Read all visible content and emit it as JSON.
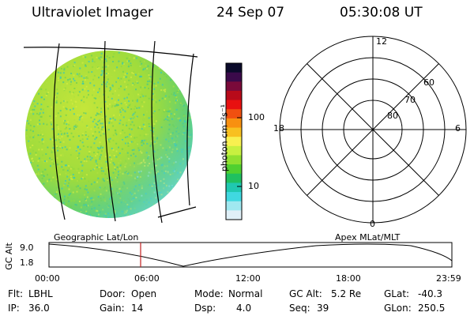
{
  "header": {
    "title": "Ultraviolet Imager",
    "date": "24 Sep 07",
    "time": "05:30:08 UT"
  },
  "colorbar": {
    "unit_label": "photon cm⁻²s⁻¹",
    "ticks": [
      "100",
      "10"
    ],
    "colors": [
      "#0a0a2a",
      "#3a0a4a",
      "#7a0a3a",
      "#b80a1a",
      "#e81010",
      "#f05010",
      "#f89010",
      "#f8c020",
      "#f8f050",
      "#c8f040",
      "#90e030",
      "#50d030",
      "#20c060",
      "#20c8b0",
      "#40d8e0",
      "#a0e8f0",
      "#e0f0f8"
    ]
  },
  "left_panel": {
    "caption": "Geographic Lat/Lon"
  },
  "right_panel": {
    "caption": "Apex MLat/MLT",
    "mlt_labels": {
      "top": "12",
      "bottom": "0",
      "left": "18",
      "right": "6"
    },
    "lat_labels": [
      "60",
      "70",
      "80"
    ]
  },
  "altitude_plot": {
    "axis_label": "GC Alt",
    "y_ticks": [
      "9.0",
      "1.8"
    ],
    "x_ticks": [
      "00:00",
      "06:00",
      "12:00",
      "18:00",
      "23:59"
    ],
    "current_time_marker_color": "#c02020"
  },
  "info": {
    "flt_label": "Flt:",
    "flt_value": "LBHL",
    "door_label": "Door:",
    "door_value": "Open",
    "mode_label": "Mode:",
    "mode_value": "Normal",
    "gcalt_label": "GC Alt:",
    "gcalt_value": "5.2 Re",
    "glat_label": "GLat:",
    "glat_value": "-40.3",
    "ip_label": "IP:",
    "ip_value": "36.0",
    "gain_label": "Gain:",
    "gain_value": "14",
    "dsp_label": "Dsp:",
    "dsp_value": "4.0",
    "seq_label": "Seq:",
    "seq_value": "39",
    "glon_label": "GLon:",
    "glon_value": "250.5"
  }
}
